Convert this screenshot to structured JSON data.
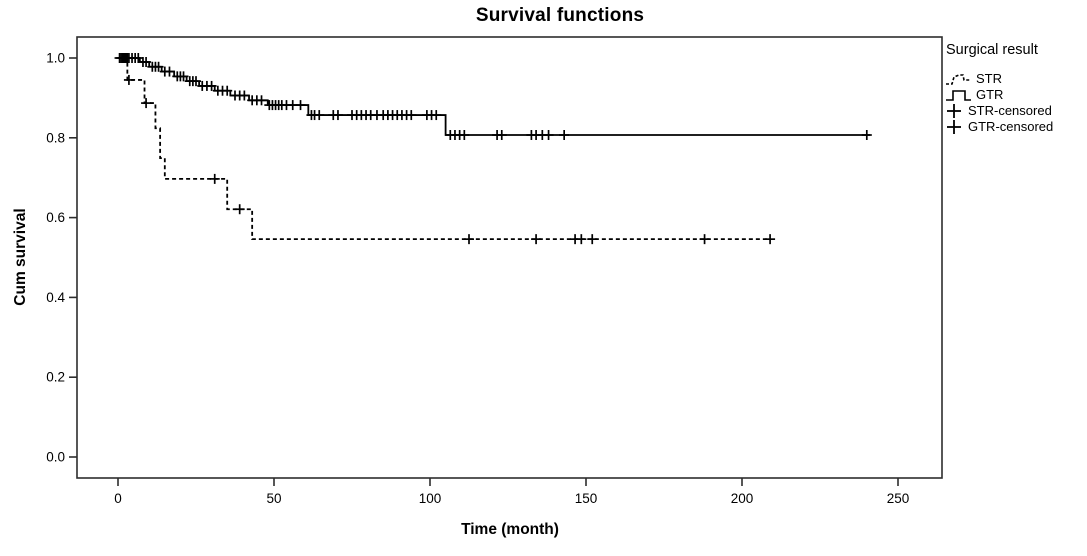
{
  "title": "Survival functions",
  "axes": {
    "x": {
      "label": "Time (month)"
    },
    "y": {
      "label": "Cum survival"
    }
  },
  "legend": {
    "title": "Surgical result",
    "items": [
      {
        "label": "STR",
        "glyph": "dashed-step-line"
      },
      {
        "label": "GTR",
        "glyph": "solid-step-line"
      },
      {
        "label": "STR-censored",
        "glyph": "plus-marker"
      },
      {
        "label": "GTR-censored",
        "glyph": "plus-marker"
      }
    ]
  },
  "colors": {
    "curve": "#000000",
    "frame": "#2d2d2d",
    "text": "#000000",
    "background": "#ffffff"
  },
  "chart_data": {
    "type": "line",
    "subtype": "kaplan_meier_step_function",
    "title": "Survival functions",
    "xlabel": "Time (month)",
    "ylabel": "Cum survival",
    "xticks": [
      0,
      50,
      100,
      150,
      200,
      250
    ],
    "yticks": [
      "0.0",
      "0.2",
      "0.4",
      "0.6",
      "0.8",
      "1.0"
    ],
    "xlim": [
      0,
      260
    ],
    "ylim": [
      0,
      1.02
    ],
    "grid": false,
    "legend_position": "right-outside",
    "series": [
      {
        "name": "GTR",
        "line_style": "solid",
        "steps": [
          [
            0,
            1.0
          ],
          [
            7,
            0.99
          ],
          [
            10,
            0.978
          ],
          [
            14,
            0.966
          ],
          [
            18,
            0.954
          ],
          [
            22,
            0.942
          ],
          [
            26,
            0.93
          ],
          [
            31,
            0.918
          ],
          [
            36,
            0.906
          ],
          [
            42,
            0.894
          ],
          [
            48,
            0.882
          ],
          [
            61,
            0.857
          ],
          [
            105,
            0.807
          ],
          [
            241,
            0.807
          ]
        ],
        "censored": [
          [
            0.5,
            1.0
          ],
          [
            1,
            1.0
          ],
          [
            1.5,
            1.0
          ],
          [
            2,
            1.0
          ],
          [
            2.5,
            1.0
          ],
          [
            3,
            1.0
          ],
          [
            3.5,
            1.0
          ],
          [
            4.5,
            1.0
          ],
          [
            5.5,
            1.0
          ],
          [
            6.5,
            1.0
          ],
          [
            8,
            0.99
          ],
          [
            9,
            0.99
          ],
          [
            11,
            0.978
          ],
          [
            12,
            0.978
          ],
          [
            13,
            0.978
          ],
          [
            15,
            0.966
          ],
          [
            16.5,
            0.966
          ],
          [
            19,
            0.954
          ],
          [
            20,
            0.954
          ],
          [
            21,
            0.954
          ],
          [
            23,
            0.942
          ],
          [
            24,
            0.942
          ],
          [
            25,
            0.942
          ],
          [
            27,
            0.93
          ],
          [
            28.5,
            0.93
          ],
          [
            30,
            0.93
          ],
          [
            32,
            0.918
          ],
          [
            33.5,
            0.918
          ],
          [
            35,
            0.918
          ],
          [
            37.5,
            0.906
          ],
          [
            39,
            0.906
          ],
          [
            40.5,
            0.906
          ],
          [
            43,
            0.894
          ],
          [
            44.5,
            0.894
          ],
          [
            46,
            0.894
          ],
          [
            48.5,
            0.882
          ],
          [
            49.5,
            0.882
          ],
          [
            50.5,
            0.882
          ],
          [
            51.5,
            0.882
          ],
          [
            52.5,
            0.882
          ],
          [
            54,
            0.882
          ],
          [
            56,
            0.882
          ],
          [
            58.5,
            0.882
          ],
          [
            62,
            0.857
          ],
          [
            63,
            0.857
          ],
          [
            64.5,
            0.857
          ],
          [
            69,
            0.857
          ],
          [
            70.5,
            0.857
          ],
          [
            75,
            0.857
          ],
          [
            76.5,
            0.857
          ],
          [
            78,
            0.857
          ],
          [
            79.5,
            0.857
          ],
          [
            81,
            0.857
          ],
          [
            83,
            0.857
          ],
          [
            85,
            0.857
          ],
          [
            86.5,
            0.857
          ],
          [
            88,
            0.857
          ],
          [
            89.5,
            0.857
          ],
          [
            91,
            0.857
          ],
          [
            92.5,
            0.857
          ],
          [
            94,
            0.857
          ],
          [
            99,
            0.857
          ],
          [
            100.5,
            0.857
          ],
          [
            102,
            0.857
          ],
          [
            106.5,
            0.807
          ],
          [
            108,
            0.807
          ],
          [
            109.5,
            0.807
          ],
          [
            111,
            0.807
          ],
          [
            121.5,
            0.807
          ],
          [
            123,
            0.807
          ],
          [
            132.5,
            0.807
          ],
          [
            134,
            0.807
          ],
          [
            136,
            0.807
          ],
          [
            138,
            0.807
          ],
          [
            143,
            0.807
          ],
          [
            240,
            0.807
          ]
        ]
      },
      {
        "name": "STR",
        "line_style": "dashed",
        "steps": [
          [
            0,
            1.0
          ],
          [
            3,
            0.945
          ],
          [
            8.5,
            0.887
          ],
          [
            12,
            0.824
          ],
          [
            13.5,
            0.749
          ],
          [
            15,
            0.697
          ],
          [
            35,
            0.621
          ],
          [
            43,
            0.546
          ],
          [
            209,
            0.546
          ]
        ],
        "censored": [
          [
            3.5,
            0.945
          ],
          [
            9,
            0.887
          ],
          [
            31,
            0.697
          ],
          [
            39,
            0.621
          ],
          [
            112.5,
            0.546
          ],
          [
            134,
            0.546
          ],
          [
            146.5,
            0.546
          ],
          [
            148.5,
            0.546
          ],
          [
            152,
            0.546
          ],
          [
            188,
            0.546
          ],
          [
            209,
            0.546
          ]
        ]
      }
    ]
  }
}
